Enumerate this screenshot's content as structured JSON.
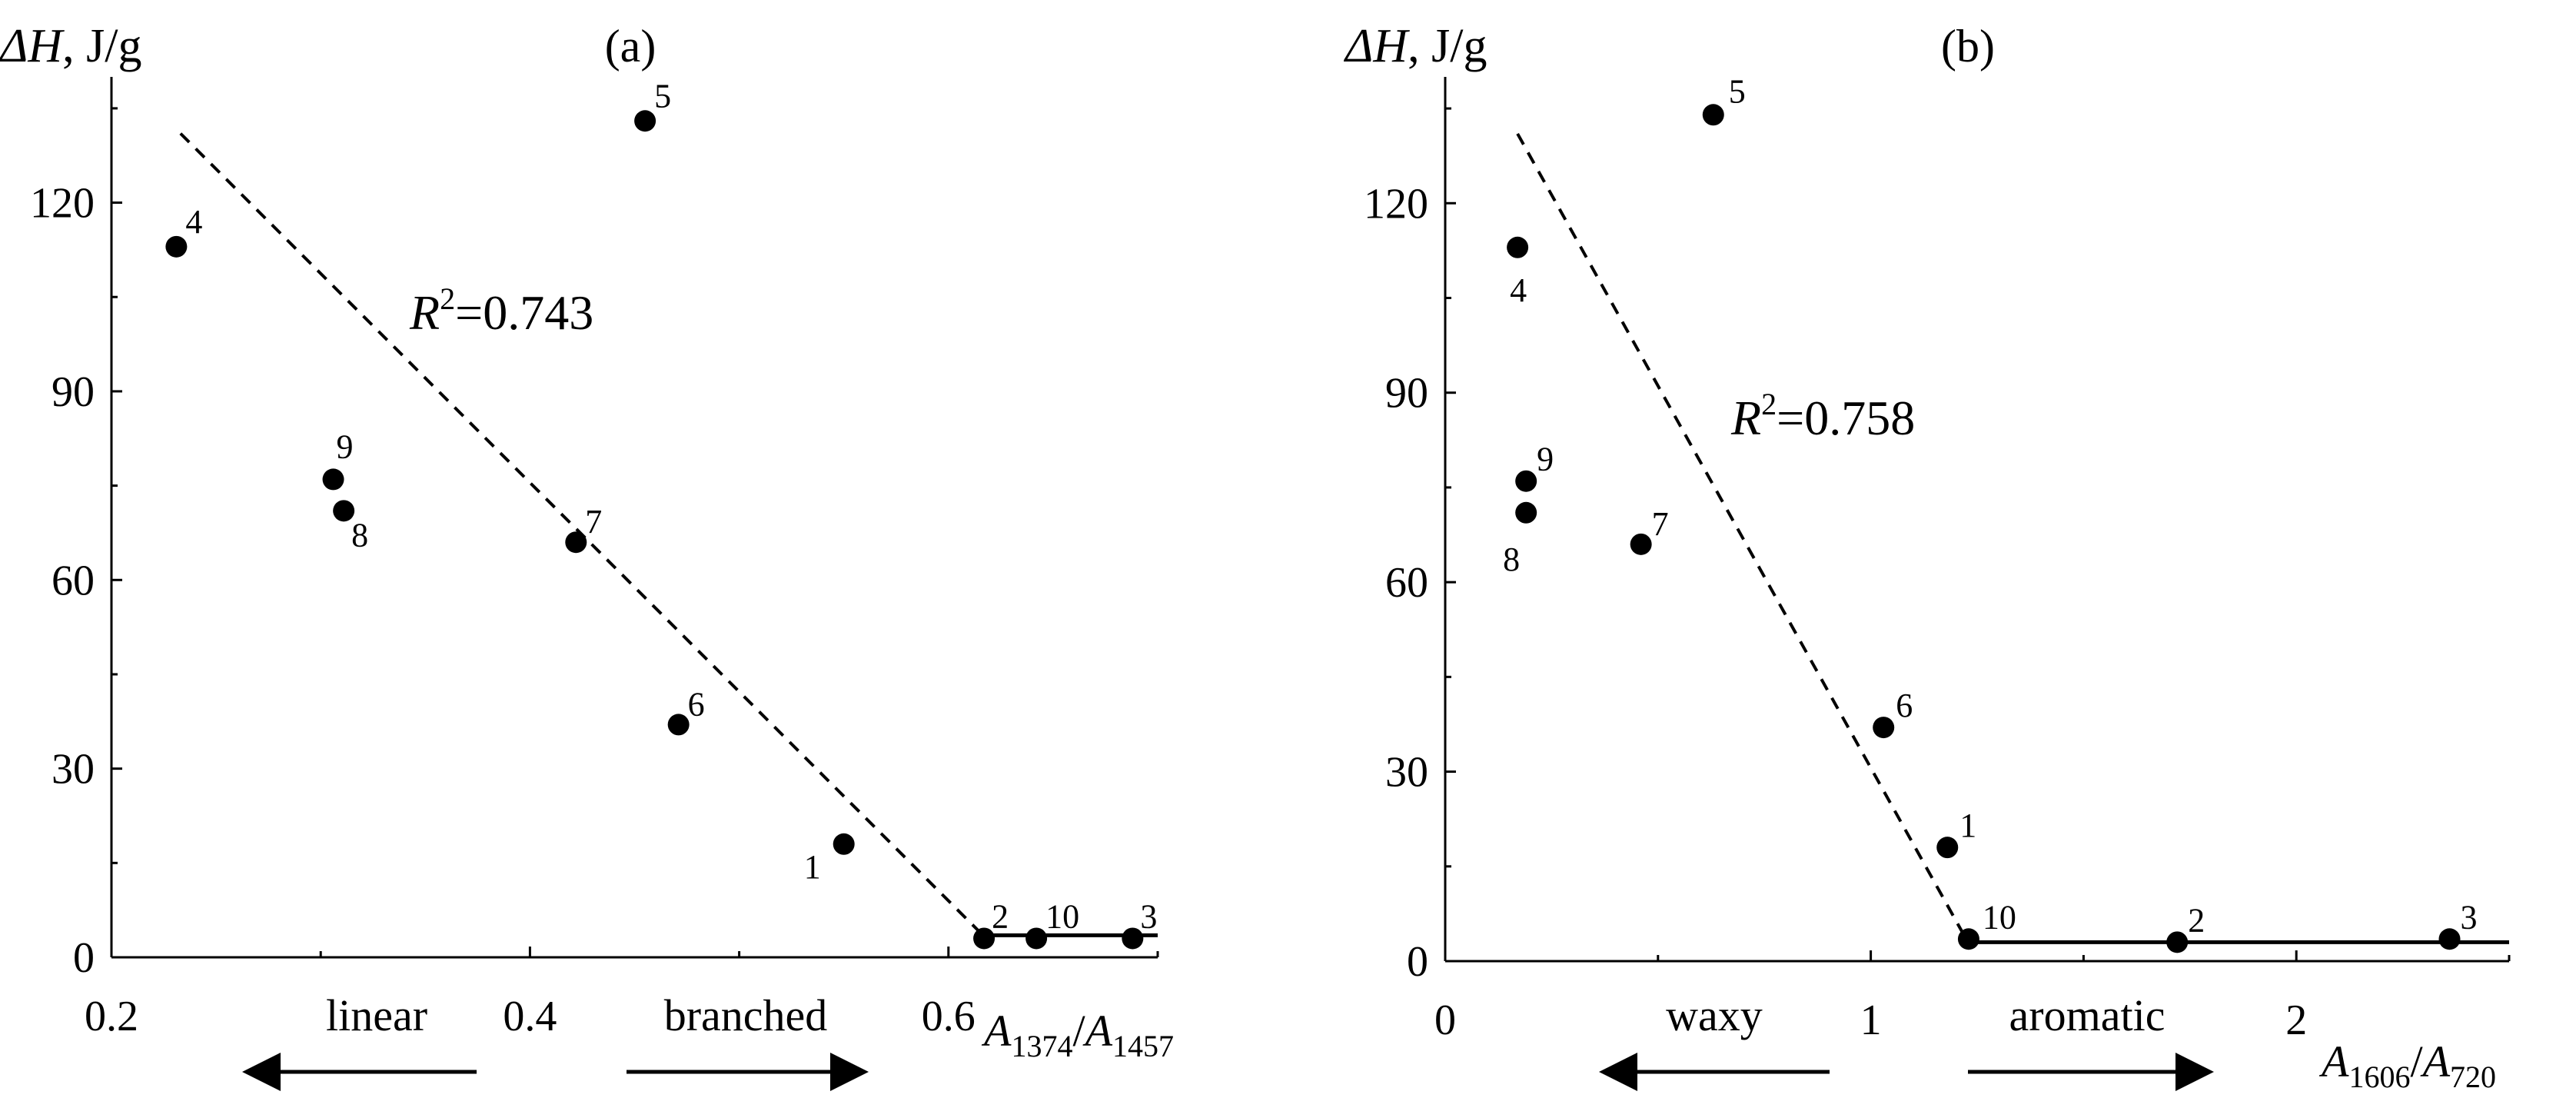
{
  "chart_data": [
    {
      "type": "scatter",
      "panel": "(a)",
      "ylabel_symbol": "ΔH",
      "ylabel_unit": ", J/g",
      "xlabel": {
        "a1": "A",
        "sub1": "1374",
        "sep": "/",
        "a2": "A",
        "sub2": "1457"
      },
      "xlim": [
        0.2,
        0.7
      ],
      "ylim": [
        0,
        140
      ],
      "xticks": [
        {
          "v": 0.2,
          "label": "0.2"
        },
        {
          "v": 0.4,
          "label": "0.4"
        },
        {
          "v": 0.6,
          "label": "0.6"
        }
      ],
      "yticks": [
        {
          "v": 0,
          "label": "0"
        },
        {
          "v": 30,
          "label": "30"
        },
        {
          "v": 60,
          "label": "60"
        },
        {
          "v": 90,
          "label": "90"
        },
        {
          "v": 120,
          "label": "120"
        }
      ],
      "points": [
        {
          "x": 0.231,
          "y": 113,
          "label": "4"
        },
        {
          "x": 0.455,
          "y": 133,
          "label": "5"
        },
        {
          "x": 0.306,
          "y": 76,
          "label": "9"
        },
        {
          "x": 0.311,
          "y": 71,
          "label": "8"
        },
        {
          "x": 0.422,
          "y": 66,
          "label": "7"
        },
        {
          "x": 0.471,
          "y": 37,
          "label": "6"
        },
        {
          "x": 0.55,
          "y": 18,
          "label": "1"
        },
        {
          "x": 0.617,
          "y": 3,
          "label": "2"
        },
        {
          "x": 0.642,
          "y": 3,
          "label": "10"
        },
        {
          "x": 0.688,
          "y": 3,
          "label": "3"
        }
      ],
      "trend_dashed": [
        [
          0.233,
          131
        ],
        [
          0.615,
          4
        ]
      ],
      "trend_solid": [
        [
          0.615,
          3.5
        ],
        [
          0.7,
          3.5
        ]
      ],
      "r2_prefix": "R",
      "r2_sup": "2",
      "r2_value": "=0.743",
      "direction_left": "linear",
      "direction_right": "branched"
    },
    {
      "type": "scatter",
      "panel": "(b)",
      "ylabel_symbol": "ΔH",
      "ylabel_unit": ", J/g",
      "xlabel": {
        "a1": "A",
        "sub1": "1606",
        "sep": "/",
        "a2": "A",
        "sub2": "720"
      },
      "xlim": [
        0,
        2.5
      ],
      "ylim": [
        0,
        140
      ],
      "xticks": [
        {
          "v": 0,
          "label": "0"
        },
        {
          "v": 1,
          "label": "1"
        },
        {
          "v": 2,
          "label": "2"
        }
      ],
      "yticks": [
        {
          "v": 0,
          "label": "0"
        },
        {
          "v": 30,
          "label": "30"
        },
        {
          "v": 60,
          "label": "60"
        },
        {
          "v": 90,
          "label": "90"
        },
        {
          "v": 120,
          "label": "120"
        }
      ],
      "points": [
        {
          "x": 0.17,
          "y": 113,
          "label": "4"
        },
        {
          "x": 0.63,
          "y": 134,
          "label": "5"
        },
        {
          "x": 0.19,
          "y": 76,
          "label": "9"
        },
        {
          "x": 0.19,
          "y": 71,
          "label": "8"
        },
        {
          "x": 0.46,
          "y": 66,
          "label": "7"
        },
        {
          "x": 1.03,
          "y": 37,
          "label": "6"
        },
        {
          "x": 1.18,
          "y": 18,
          "label": "1"
        },
        {
          "x": 1.23,
          "y": 3.5,
          "label": "10"
        },
        {
          "x": 1.72,
          "y": 3,
          "label": "2"
        },
        {
          "x": 2.36,
          "y": 3.5,
          "label": "3"
        }
      ],
      "trend_dashed": [
        [
          0.17,
          131
        ],
        [
          1.22,
          4
        ]
      ],
      "trend_solid": [
        [
          1.22,
          3
        ],
        [
          2.5,
          3
        ]
      ],
      "r2_prefix": "R",
      "r2_sup": "2",
      "r2_value": "=0.758",
      "direction_left": "waxy",
      "direction_right": "aromatic"
    }
  ]
}
